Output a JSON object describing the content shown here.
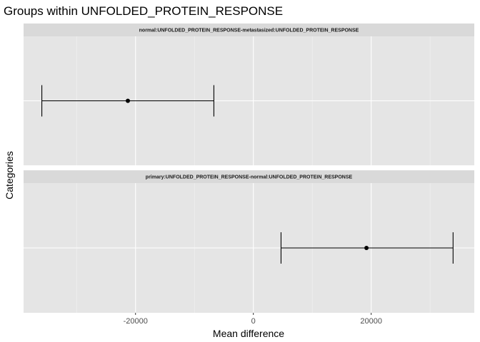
{
  "chart_data": {
    "type": "errorbar",
    "title": "Groups within UNFOLDED_PROTEIN_RESPONSE",
    "xlabel": "Mean difference",
    "ylabel": "Categories",
    "xlim": [
      -39000,
      37500
    ],
    "xticks": [
      -20000,
      0,
      20000
    ],
    "xtick_labels": [
      "-20000",
      "0",
      "20000"
    ],
    "grid": true,
    "panels": [
      {
        "label": "normal:UNFOLDED_PROTEIN_RESPONSE-metastasized:UNFOLDED_PROTEIN_RESPONSE",
        "estimate": -21300,
        "lower": -35900,
        "upper": -6700
      },
      {
        "label": "primary:UNFOLDED_PROTEIN_RESPONSE-normal:UNFOLDED_PROTEIN_RESPONSE",
        "estimate": 19200,
        "lower": 4700,
        "upper": 33900
      }
    ]
  },
  "colors": {
    "panel_bg": "#e5e5e5",
    "strip_bg": "#d9d9d9",
    "grid_major": "#ffffff",
    "mark": "#000000"
  }
}
